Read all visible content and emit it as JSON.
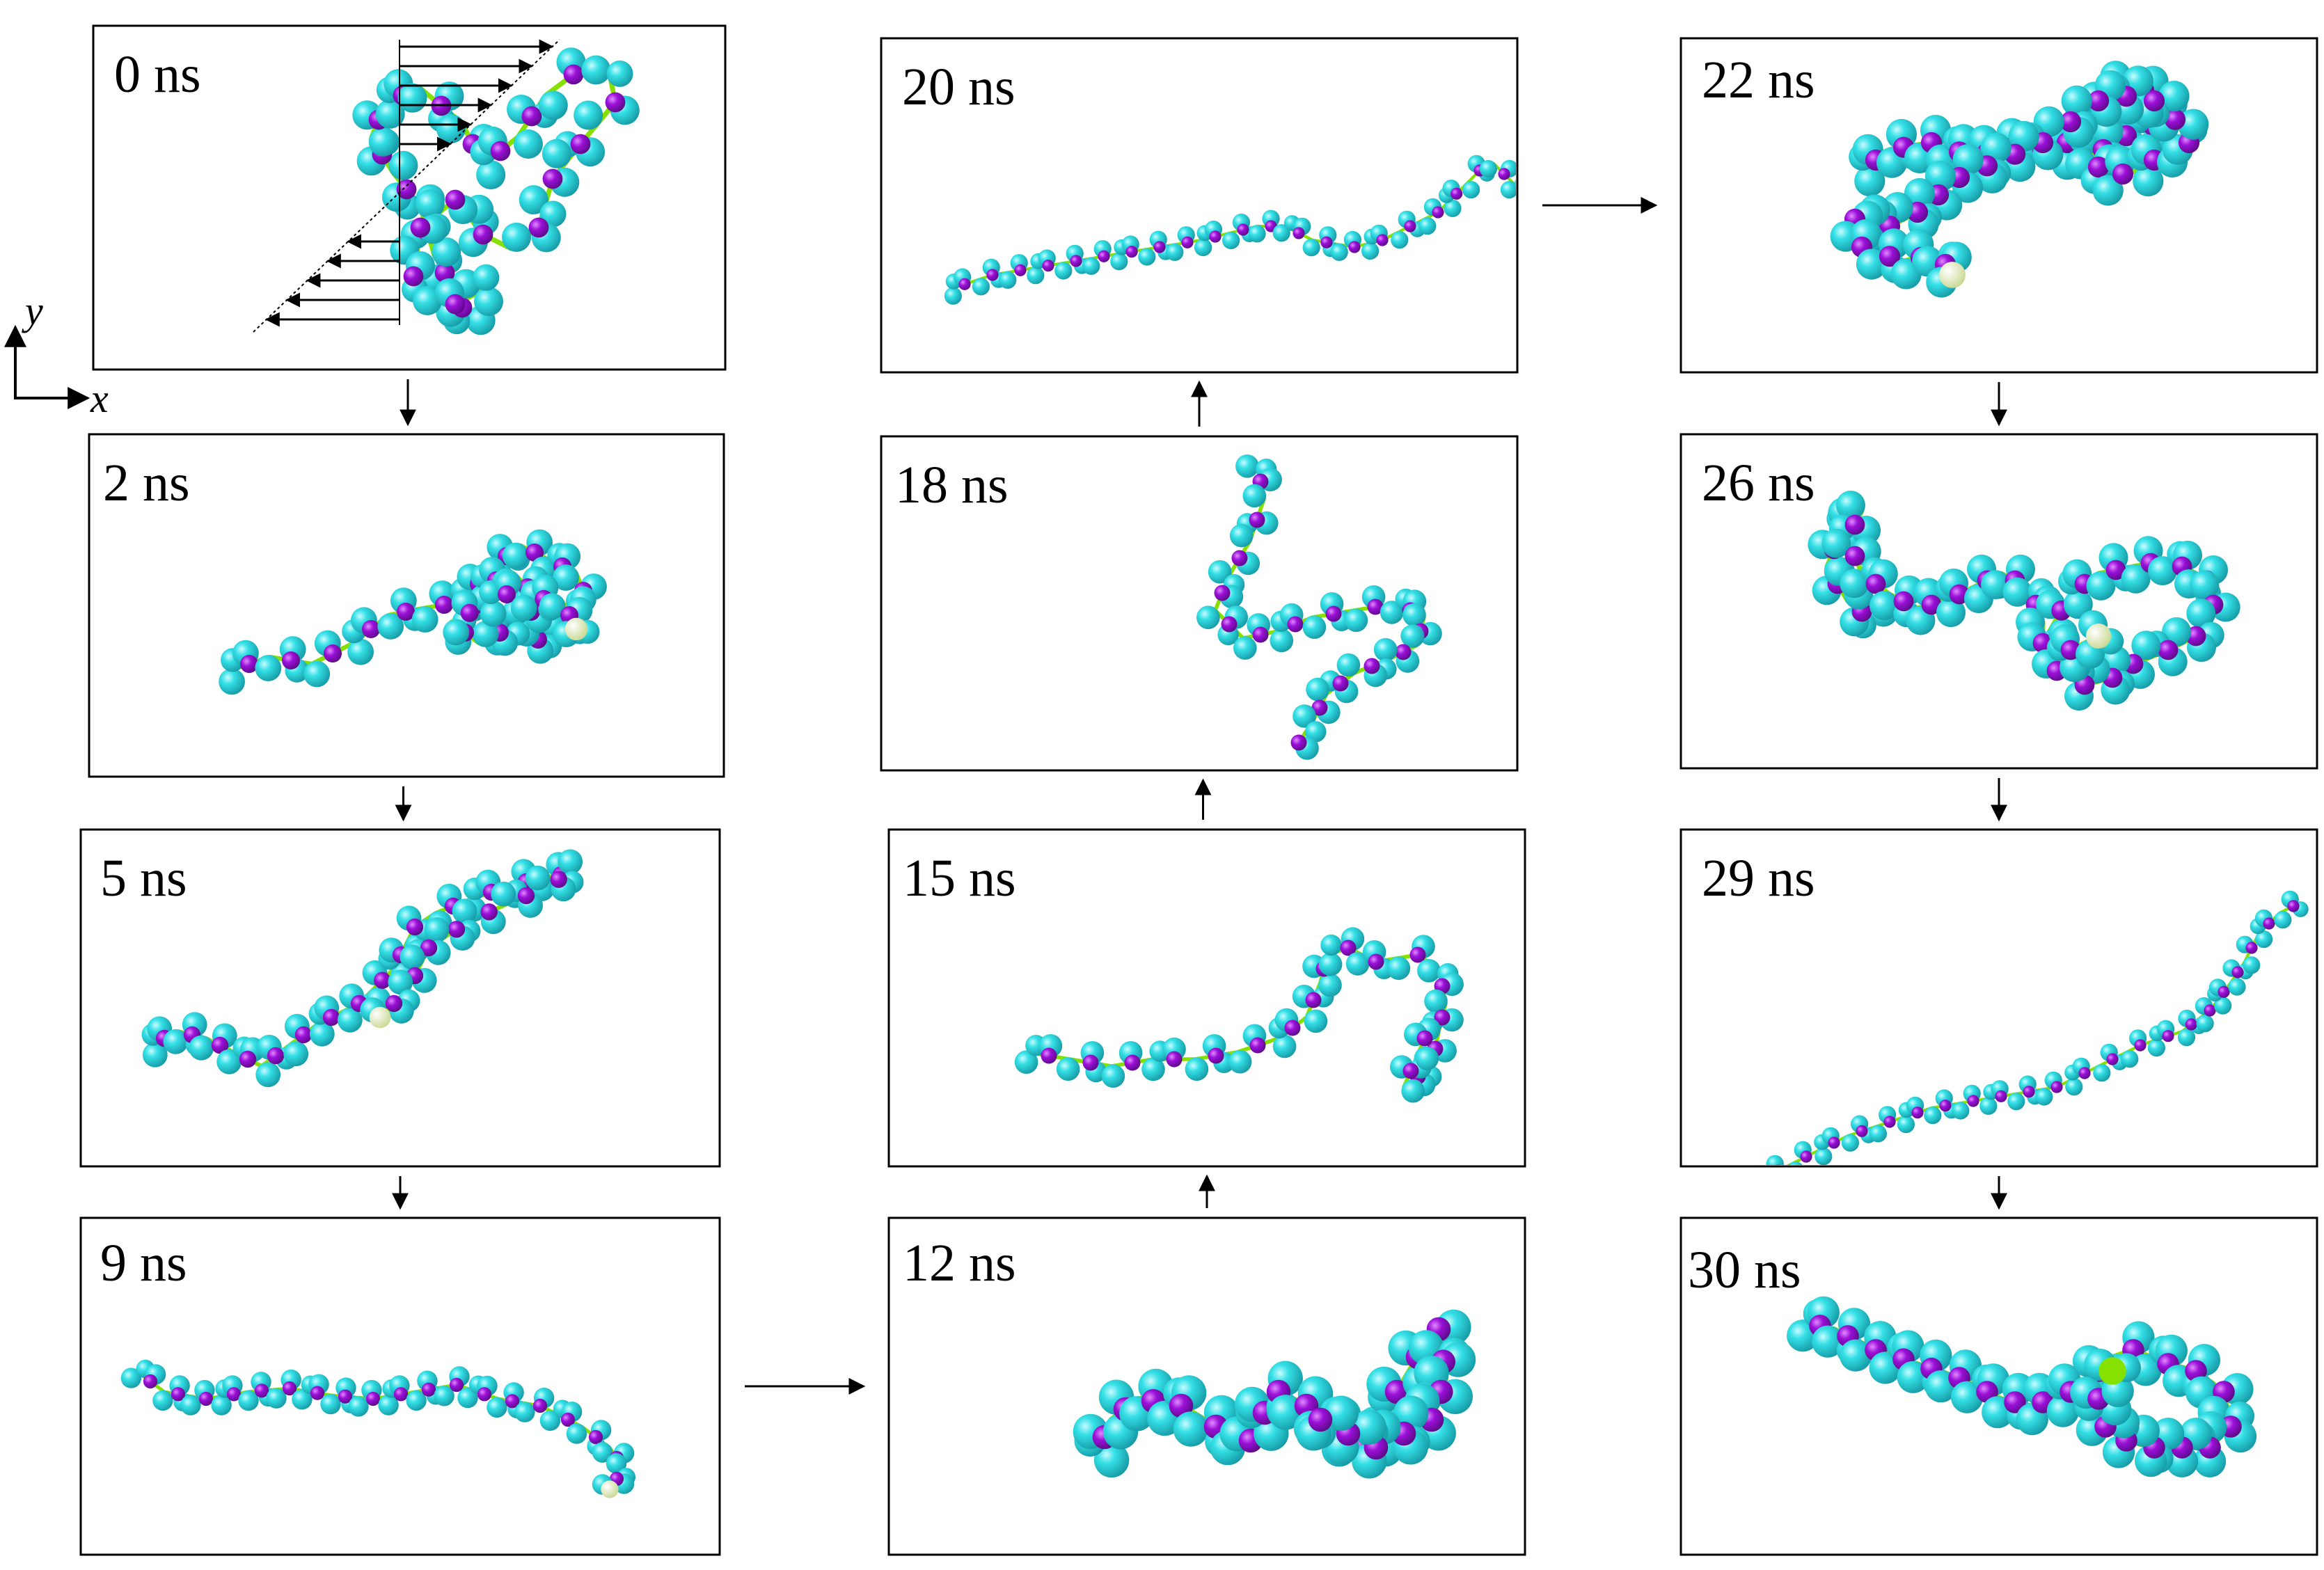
{
  "colors": {
    "bead_light": "#35e0e6",
    "bead_dark": "#1fb9c4",
    "backbone": "#9a10d8",
    "linker": "#86e000",
    "pale_bead": "#e6f0b8",
    "frame": "#000000"
  },
  "axes": {
    "y_label": "y",
    "x_label": "x"
  },
  "panels": [
    {
      "id": "t0",
      "time": "0 ns",
      "shape": "compact"
    },
    {
      "id": "t2",
      "time": "2 ns",
      "shape": "tail-with-knot"
    },
    {
      "id": "t5",
      "time": "5 ns",
      "shape": "rising-chain"
    },
    {
      "id": "t9",
      "time": "9 ns",
      "shape": "extended"
    },
    {
      "id": "t12",
      "time": "12 ns",
      "shape": "wavy-compact"
    },
    {
      "id": "t15",
      "time": "15 ns",
      "shape": "hook"
    },
    {
      "id": "t18",
      "time": "18 ns",
      "shape": "folded"
    },
    {
      "id": "t20",
      "time": "20 ns",
      "shape": "extended"
    },
    {
      "id": "t22",
      "time": "22 ns",
      "shape": "collapsed"
    },
    {
      "id": "t26",
      "time": "26 ns",
      "shape": "serpentine"
    },
    {
      "id": "t29",
      "time": "29 ns",
      "shape": "extended"
    },
    {
      "id": "t30",
      "time": "30 ns",
      "shape": "wavy"
    }
  ],
  "flow": [
    [
      "t0",
      "t2"
    ],
    [
      "t2",
      "t5"
    ],
    [
      "t5",
      "t9"
    ],
    [
      "t9",
      "t12"
    ],
    [
      "t12",
      "t15"
    ],
    [
      "t15",
      "t18"
    ],
    [
      "t18",
      "t20"
    ],
    [
      "t20",
      "t22"
    ],
    [
      "t22",
      "t26"
    ],
    [
      "t26",
      "t29"
    ],
    [
      "t29",
      "t30"
    ]
  ]
}
